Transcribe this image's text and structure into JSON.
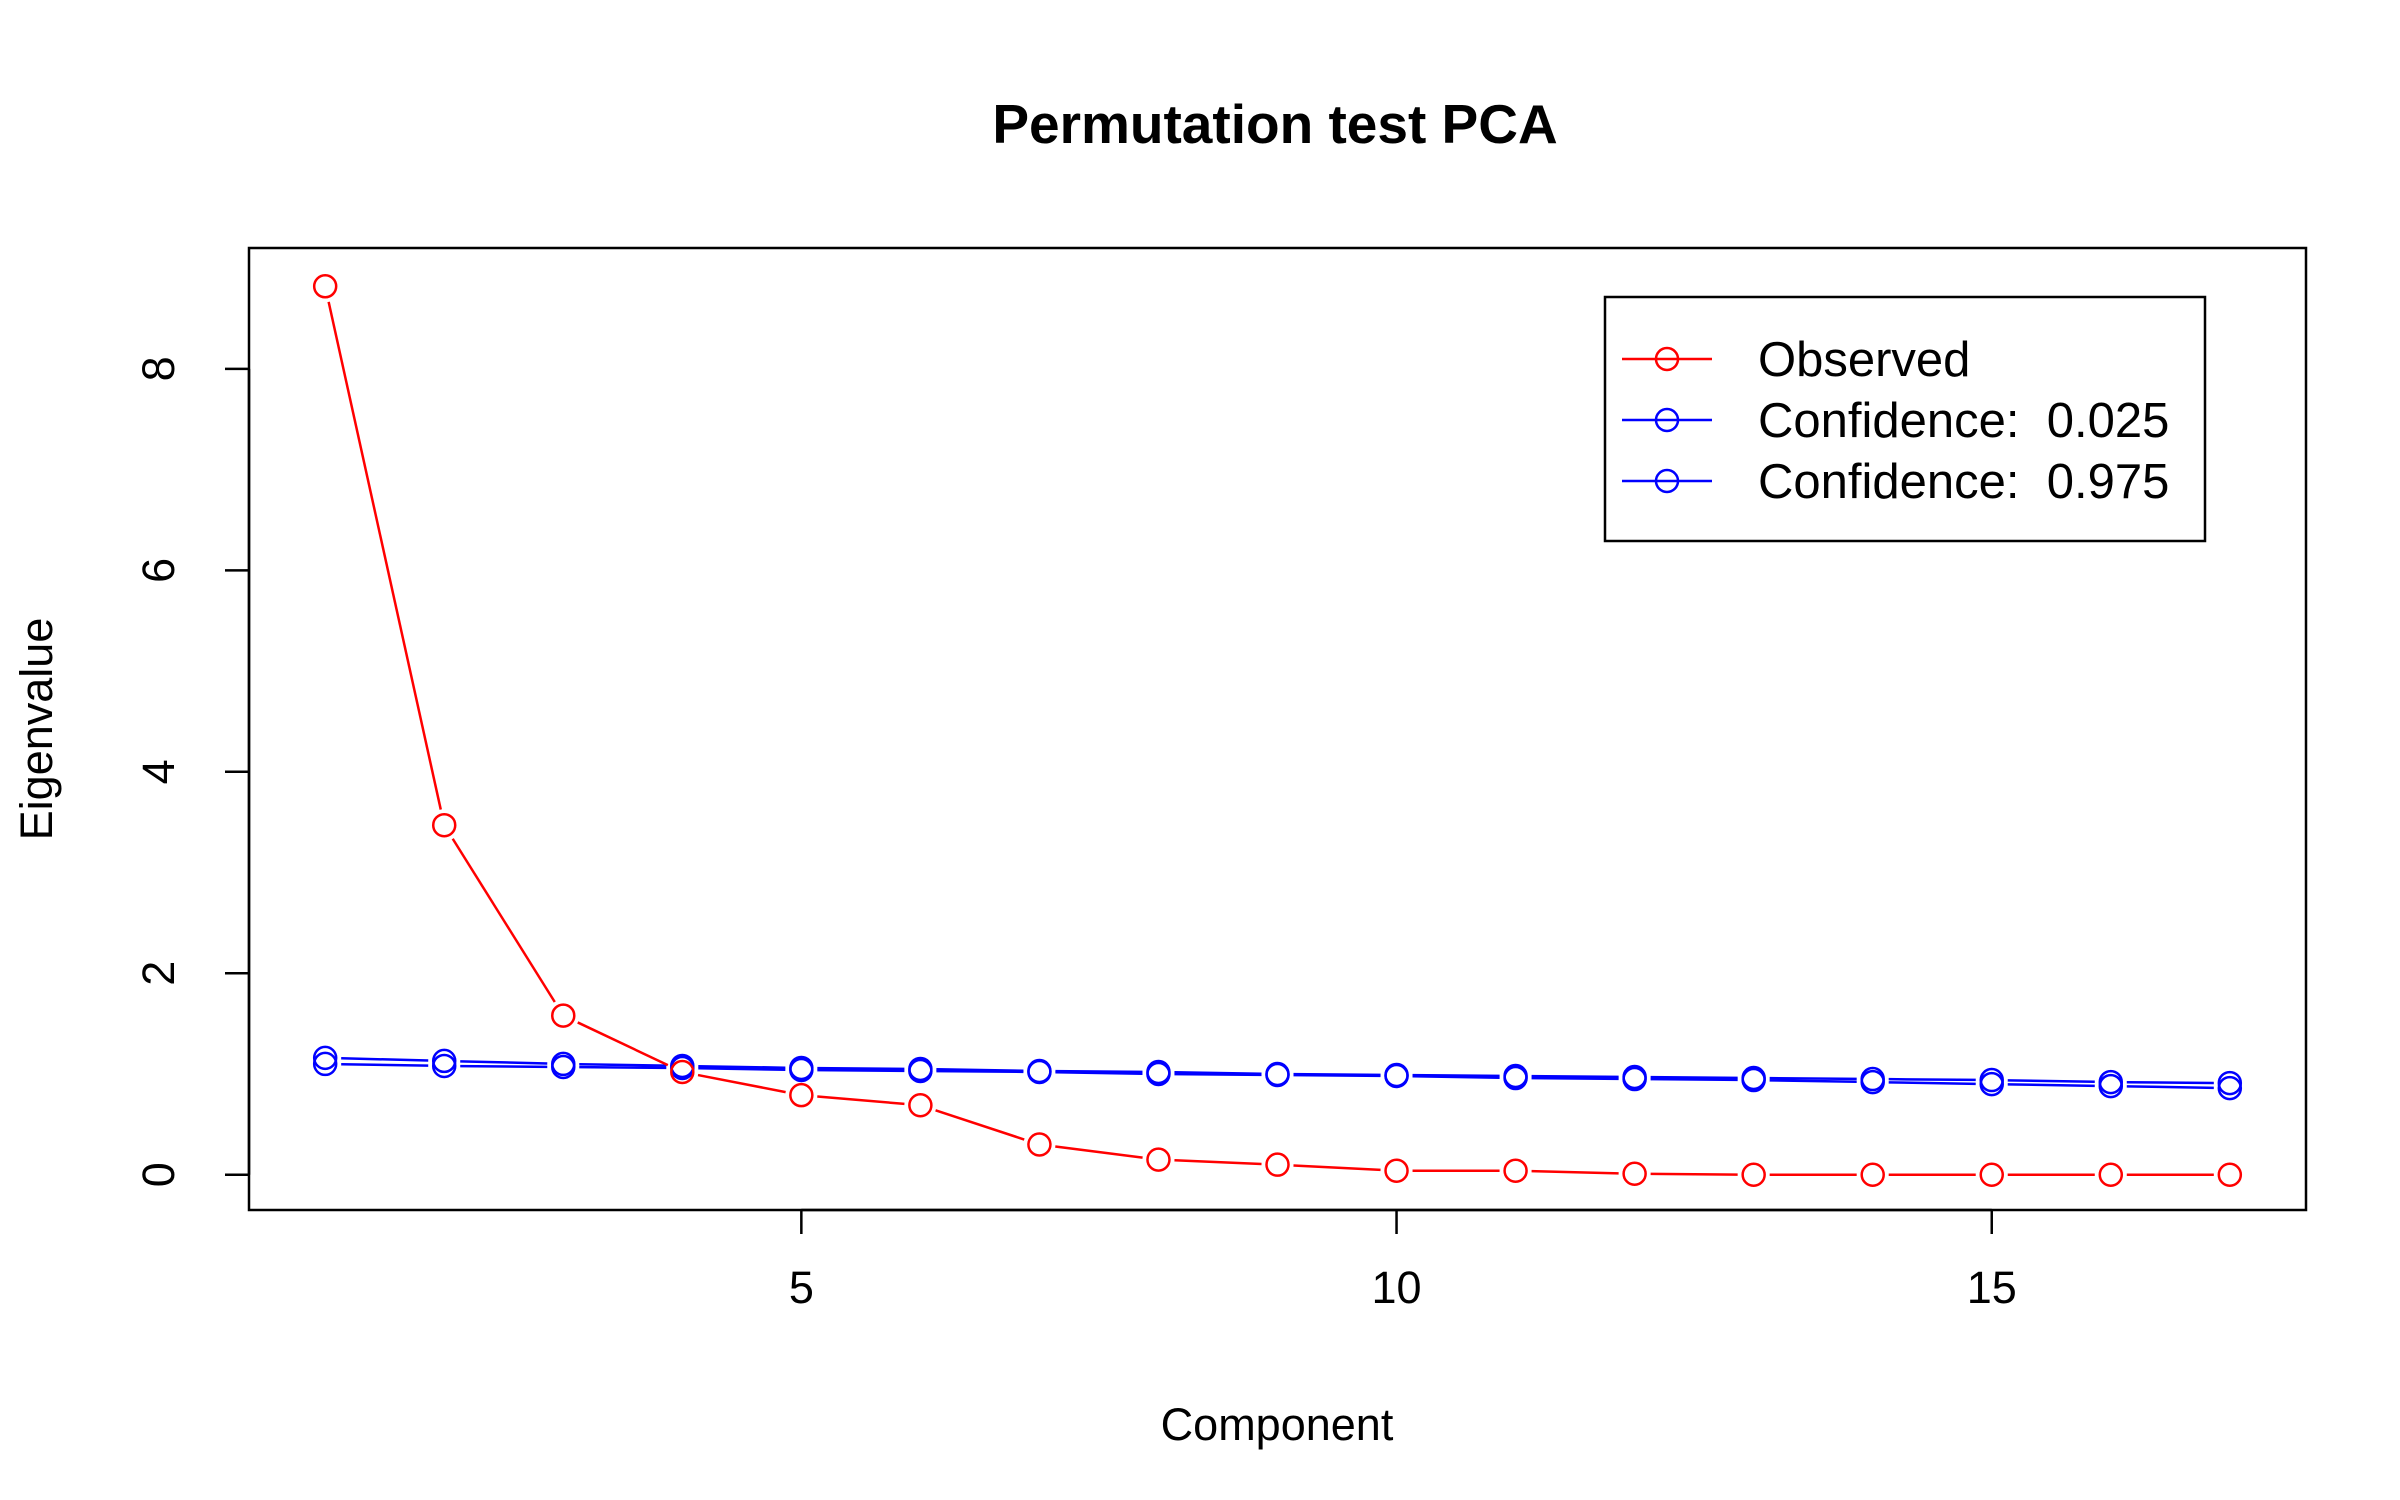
{
  "chart_data": {
    "type": "line",
    "title": "Permutation test PCA",
    "xlabel": "Component",
    "ylabel": "Eigenvalue",
    "xlim": [
      0.36,
      17.64
    ],
    "ylim": [
      -0.35,
      9.2
    ],
    "x_ticks": [
      5,
      10,
      15
    ],
    "x_tick_labels": [
      "5",
      "10",
      "15"
    ],
    "y_ticks": [
      0,
      2,
      4,
      6,
      8
    ],
    "y_tick_labels": [
      "0",
      "2",
      "4",
      "6",
      "8"
    ],
    "grid": false,
    "legend_position": "top-right",
    "x": [
      1,
      2,
      3,
      4,
      5,
      6,
      7,
      8,
      9,
      10,
      11,
      12,
      13,
      14,
      15,
      16,
      17
    ],
    "series": [
      {
        "name": "Observed",
        "color": "#ff0000",
        "values": [
          8.82,
          3.47,
          1.58,
          1.02,
          0.79,
          0.69,
          0.3,
          0.15,
          0.1,
          0.04,
          0.04,
          0.01,
          0.0,
          0.0,
          0.0,
          0.0,
          0.0
        ]
      },
      {
        "name": "Confidence:  0.025",
        "color": "#0000ff",
        "values": [
          1.1,
          1.08,
          1.07,
          1.06,
          1.04,
          1.03,
          1.02,
          1.0,
          0.99,
          0.98,
          0.96,
          0.95,
          0.94,
          0.92,
          0.9,
          0.88,
          0.86
        ]
      },
      {
        "name": "Confidence:  0.975",
        "color": "#0000ff",
        "values": [
          1.16,
          1.13,
          1.1,
          1.08,
          1.06,
          1.05,
          1.03,
          1.02,
          1.0,
          0.99,
          0.98,
          0.97,
          0.96,
          0.95,
          0.94,
          0.92,
          0.91
        ]
      }
    ]
  }
}
